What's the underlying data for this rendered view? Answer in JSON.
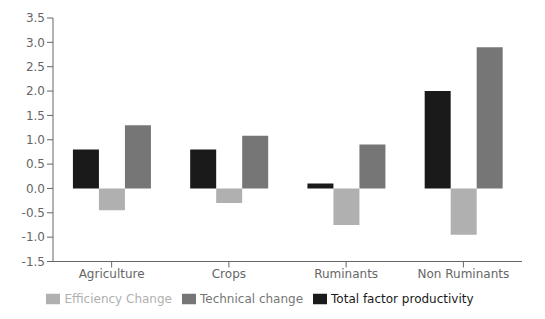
{
  "chart_data": {
    "type": "bar",
    "categories": [
      "Agriculture",
      "Crops",
      "Ruminants",
      "Non Ruminants"
    ],
    "series": [
      {
        "name": "Total factor productivity",
        "color": "#1a1a1a",
        "values": [
          0.8,
          0.8,
          0.1,
          2.0
        ]
      },
      {
        "name": "Efficiency Change",
        "color": "#b0b0b0",
        "values": [
          -0.45,
          -0.3,
          -0.75,
          -0.95
        ]
      },
      {
        "name": "Technical change",
        "color": "#767676",
        "values": [
          1.3,
          1.08,
          0.9,
          2.9
        ]
      }
    ],
    "ylim": [
      -1.5,
      3.5
    ],
    "yticks": [
      -1.5,
      {
        "value": -1,
        "label": "-1.0"
      },
      -0.5,
      {
        "value": 0,
        "label": "0.0"
      },
      0.5,
      {
        "value": 1,
        "label": "1.0"
      },
      1.5,
      {
        "value": 2,
        "label": "2.0"
      },
      2.5,
      {
        "value": 3,
        "label": "3.0"
      },
      3.5
    ],
    "grid": false,
    "legend": "bottom"
  }
}
